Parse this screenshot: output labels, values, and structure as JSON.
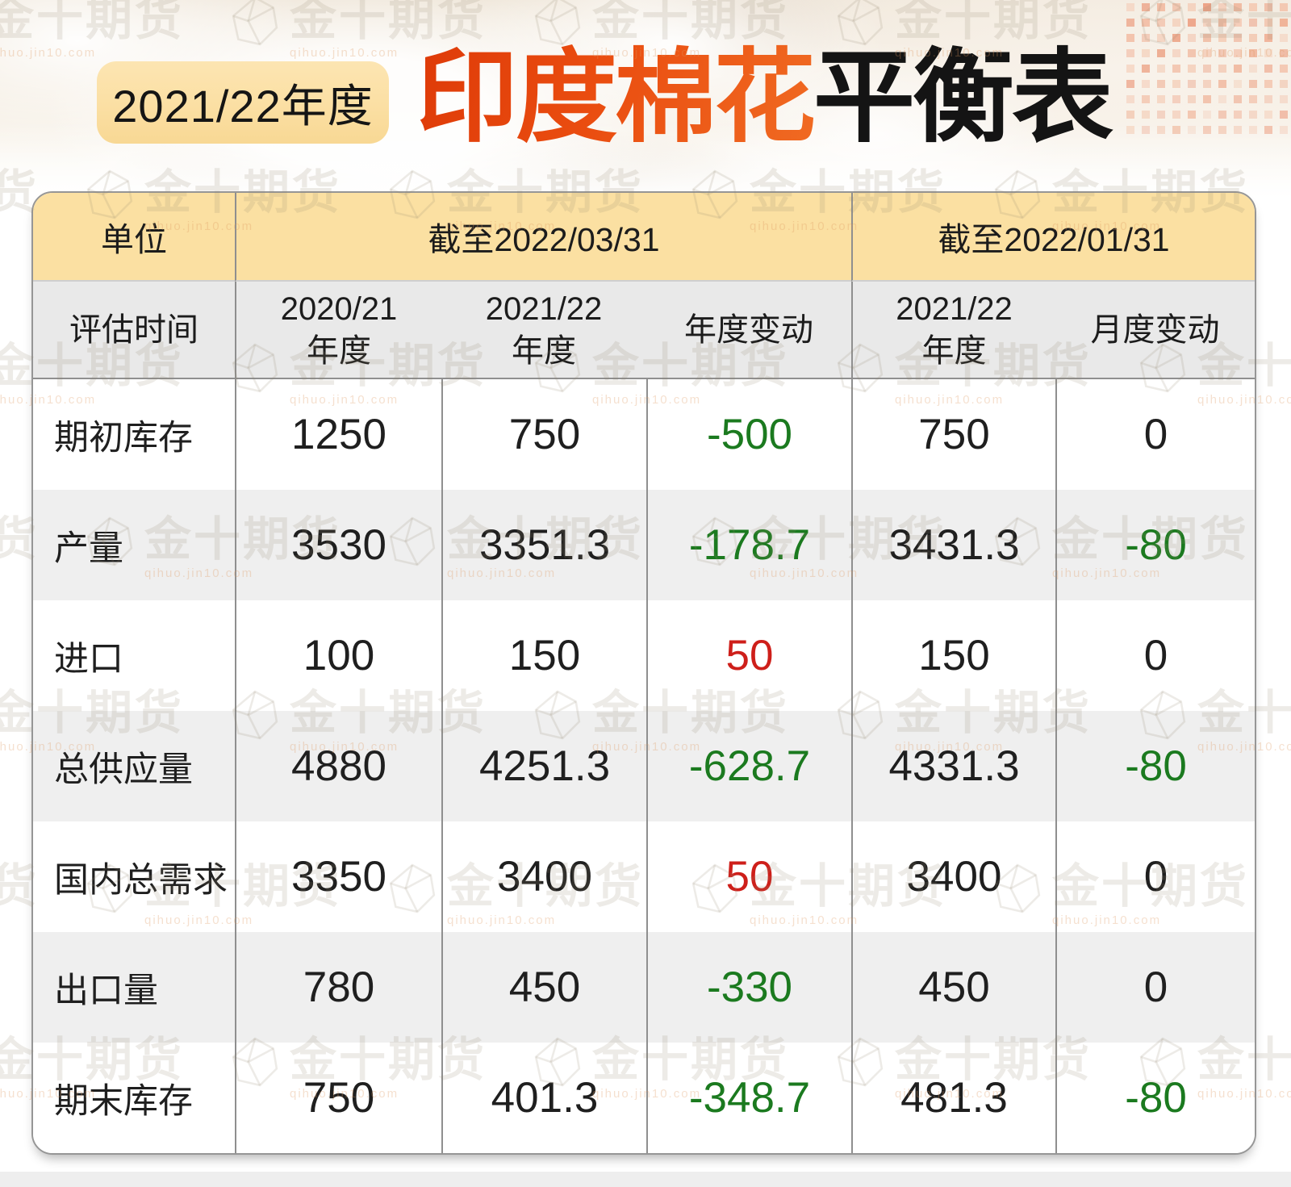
{
  "header": {
    "badge": "2021/22年度",
    "title_orange": "印度棉花",
    "title_black": "平衡表"
  },
  "watermark": {
    "brand": "金十期货",
    "sub": "qihuo.jin10.com"
  },
  "table": {
    "top_header": {
      "unit_label": "单位",
      "group1": "截至2022/03/31",
      "group2": "截至2022/01/31"
    },
    "sub_header": {
      "row_label": "评估时间",
      "cols": [
        "2020/21\n年度",
        "2021/22\n年度",
        "年度变动",
        "2021/22\n年度",
        "月度变动"
      ]
    },
    "rows": [
      {
        "label": "期初库存",
        "y2021": "1250",
        "y2122": "750",
        "yoy": "-500",
        "yoy_color": "green",
        "m2122": "750",
        "mom": "0",
        "mom_color": "black"
      },
      {
        "label": "产量",
        "y2021": "3530",
        "y2122": "3351.3",
        "yoy": "-178.7",
        "yoy_color": "green",
        "m2122": "3431.3",
        "mom": "-80",
        "mom_color": "green"
      },
      {
        "label": "进口",
        "y2021": "100",
        "y2122": "150",
        "yoy": "50",
        "yoy_color": "red",
        "m2122": "150",
        "mom": "0",
        "mom_color": "black"
      },
      {
        "label": "总供应量",
        "y2021": "4880",
        "y2122": "4251.3",
        "yoy": "-628.7",
        "yoy_color": "green",
        "m2122": "4331.3",
        "mom": "-80",
        "mom_color": "green"
      },
      {
        "label": "国内总需求",
        "y2021": "3350",
        "y2122": "3400",
        "yoy": "50",
        "yoy_color": "red",
        "m2122": "3400",
        "mom": "0",
        "mom_color": "black"
      },
      {
        "label": "出口量",
        "y2021": "780",
        "y2122": "450",
        "yoy": "-330",
        "yoy_color": "green",
        "m2122": "450",
        "mom": "0",
        "mom_color": "black"
      },
      {
        "label": "期末库存",
        "y2021": "750",
        "y2122": "401.3",
        "yoy": "-348.7",
        "yoy_color": "green",
        "m2122": "481.3",
        "mom": "-80",
        "mom_color": "green"
      }
    ]
  },
  "colors": {
    "title_orange": "#E8430E",
    "badge_bg": "#FBDFA3",
    "header_yellow": "#FBE0A2",
    "subheader_gray": "#E9E9E9",
    "row_alt_gray": "#EFEFEF",
    "positive_red": "#CE1F1A",
    "negative_green": "#1B7A1F",
    "dot_orange": "#EFA487"
  },
  "chart_data": {
    "type": "table",
    "title": "2021/22年度 印度棉花平衡表",
    "column_groups": [
      {
        "label": "截至2022/03/31",
        "span": 3
      },
      {
        "label": "截至2022/01/31",
        "span": 2
      }
    ],
    "columns": [
      "评估时间",
      "2020/21年度",
      "2021/22年度",
      "年度变动",
      "2021/22年度",
      "月度变动"
    ],
    "rows": [
      [
        "期初库存",
        1250,
        750,
        -500,
        750,
        0
      ],
      [
        "产量",
        3530,
        3351.3,
        -178.7,
        3431.3,
        -80
      ],
      [
        "进口",
        100,
        150,
        50,
        150,
        0
      ],
      [
        "总供应量",
        4880,
        4251.3,
        -628.7,
        4331.3,
        -80
      ],
      [
        "国内总需求",
        3350,
        3400,
        50,
        3400,
        0
      ],
      [
        "出口量",
        780,
        450,
        -330,
        450,
        0
      ],
      [
        "期末库存",
        750,
        401.3,
        -348.7,
        481.3,
        -80
      ]
    ]
  }
}
